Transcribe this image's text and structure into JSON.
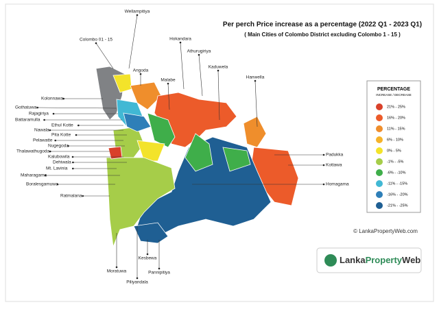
{
  "header": {
    "title": "Per perch Price increase as a percentage (2022 Q1 - 2023 Q1)",
    "subtitle": "( Main Cities of Colombo District excluding Colombo 1 - 15 )"
  },
  "places": [
    "Colombo 01 - 15",
    "Wellampitiya",
    "Angoda",
    "Hokandara",
    "Athurugiriya",
    "Kaduwela",
    "Malabe",
    "Hanwella",
    "Kolonnawa",
    "Gothatuwa",
    "Rajagiriya",
    "Battaramulla",
    "Ethul Kotte",
    "Nawala",
    "Pita Kotte",
    "Pelawatte",
    "Nugegoda",
    "Thalawathugoda",
    "Kalubowila",
    "Dehiwala",
    "Mt. Lavinia",
    "Maharagama",
    "Boralesgamuwa",
    "Ratmalana",
    "Padukka",
    "Kottawa",
    "Homagama",
    "Moratuwa",
    "Piliyandala",
    "Pannipitiya",
    "Kesbewa"
  ],
  "legend": {
    "title": "PERCENTAGE",
    "subtitle": "INCREASE / DECREASE",
    "items": [
      {
        "label": "21% - 25%",
        "color": "#d9412a"
      },
      {
        "label": "16% - 20%",
        "color": "#ec5b2a"
      },
      {
        "label": "11% - 15%",
        "color": "#ef8e2c"
      },
      {
        "label": "6% - 10%",
        "color": "#f5b32a"
      },
      {
        "label": "0% - 5%",
        "color": "#f3e32a"
      },
      {
        "label": "-1% - -5%",
        "color": "#a6cd49"
      },
      {
        "label": "-6% - -10%",
        "color": "#3fae4a"
      },
      {
        "label": "-11% - -15%",
        "color": "#41b8d4"
      },
      {
        "label": "-16% - -20%",
        "color": "#2e7fb8"
      },
      {
        "label": "-21% - -25%",
        "color": "#1f5f93"
      }
    ]
  },
  "footer": {
    "copyright": "© LankaPropertyWeb.com",
    "logo": [
      "Lanka",
      "Property",
      "Web"
    ]
  }
}
